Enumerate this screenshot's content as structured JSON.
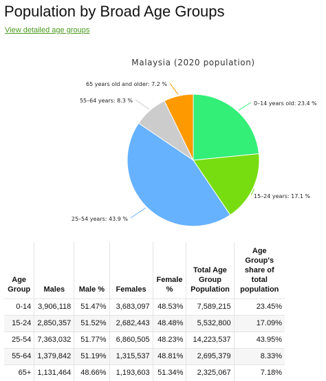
{
  "page": {
    "title": "Population by Broad Age Groups",
    "link_text": "View detailed age groups"
  },
  "chart_data": {
    "type": "pie",
    "title": "Malaysia (2020 population)",
    "slices": [
      {
        "label": "0–14 years old: 23.4 %",
        "value": 23.4,
        "color": "#33ee77"
      },
      {
        "label": "15–24 years: 17.1 %",
        "value": 17.1,
        "color": "#77dd11"
      },
      {
        "label": "25–54 years: 43.9 %",
        "value": 43.9,
        "color": "#66b2ff"
      },
      {
        "label": "55–64 years: 8.3 %",
        "value": 8.3,
        "color": "#cccccc"
      },
      {
        "label": "65 years old and older: 7.2 %",
        "value": 7.2,
        "color": "#ff9900"
      }
    ]
  },
  "table": {
    "headers": [
      "Age Group",
      "Males",
      "Male %",
      "Females",
      "Female %",
      "Total Age Group Population",
      "Age Group's share of total population"
    ],
    "rows": [
      [
        "0-14",
        "3,906,118",
        "51.47%",
        "3,683,097",
        "48.53%",
        "7,589,215",
        "23.45%"
      ],
      [
        "15-24",
        "2,850,357",
        "51.52%",
        "2,682,443",
        "48.48%",
        "5,532,800",
        "17.09%"
      ],
      [
        "25-54",
        "7,363,032",
        "51.77%",
        "6,860,505",
        "48.23%",
        "14,223,537",
        "43.95%"
      ],
      [
        "55-64",
        "1,379,842",
        "51.19%",
        "1,315,537",
        "48.81%",
        "2,695,379",
        "8.33%"
      ],
      [
        "65+",
        "1,131,464",
        "48.66%",
        "1,193,603",
        "51.34%",
        "2,325,067",
        "7.18%"
      ]
    ]
  }
}
